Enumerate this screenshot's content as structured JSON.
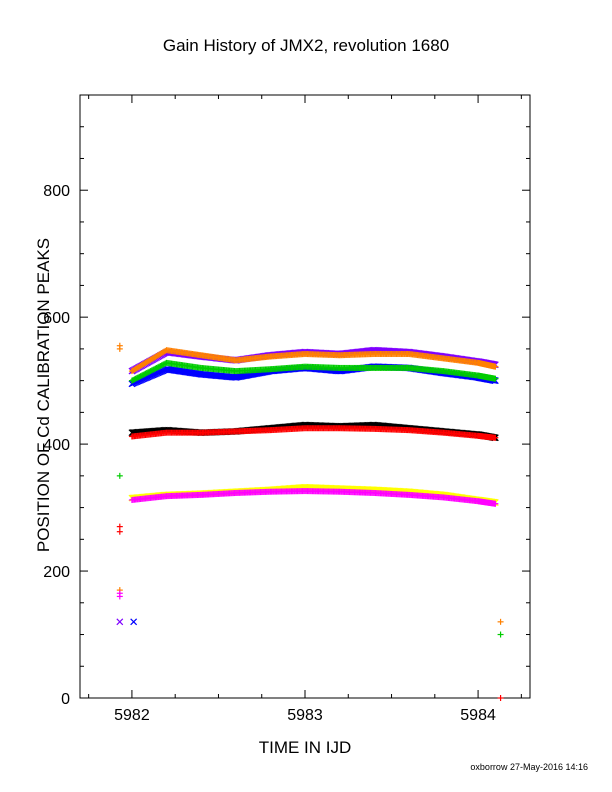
{
  "chart_data": {
    "type": "scatter",
    "title": "Gain History of JMX2, revolution 1680",
    "xlabel": "TIME IN IJD",
    "ylabel": "POSITION OF Cd CALIBRATION PEAKS",
    "xlim": [
      5981.7,
      5984.3
    ],
    "ylim": [
      0,
      950
    ],
    "xticks": [
      5982,
      5983,
      5984
    ],
    "yticks": [
      0,
      200,
      400,
      600,
      800
    ],
    "grid": false,
    "series": [
      {
        "color": "#7f00ff",
        "marker": "x",
        "x": [
          5982.0,
          5982.2,
          5982.4,
          5982.6,
          5982.8,
          5983.0,
          5983.2,
          5983.4,
          5983.6,
          5983.8,
          5984.0,
          5984.1
        ],
        "y": [
          515,
          545,
          538,
          532,
          540,
          545,
          542,
          548,
          545,
          538,
          530,
          525
        ]
      },
      {
        "color": "#0000ff",
        "marker": "x",
        "x": [
          5982.0,
          5982.2,
          5982.4,
          5982.6,
          5982.8,
          5983.0,
          5983.2,
          5983.4,
          5983.6,
          5983.8,
          5984.0,
          5984.1
        ],
        "y": [
          495,
          518,
          510,
          505,
          515,
          520,
          515,
          522,
          520,
          512,
          505,
          500
        ]
      },
      {
        "color": "#ff8000",
        "marker": "+",
        "x": [
          5982.0,
          5982.2,
          5982.4,
          5982.6,
          5982.8,
          5983.0,
          5983.2,
          5983.4,
          5983.6,
          5983.8,
          5984.0,
          5984.1
        ],
        "y": [
          515,
          548,
          540,
          532,
          538,
          542,
          540,
          542,
          542,
          535,
          528,
          522
        ]
      },
      {
        "color": "#00cc00",
        "marker": "+",
        "x": [
          5982.0,
          5982.2,
          5982.4,
          5982.6,
          5982.8,
          5983.0,
          5983.2,
          5983.4,
          5983.6,
          5983.8,
          5984.0,
          5984.1
        ],
        "y": [
          500,
          528,
          520,
          515,
          518,
          522,
          520,
          520,
          520,
          515,
          508,
          503
        ]
      },
      {
        "color": "#000000",
        "marker": "x",
        "x": [
          5982.0,
          5982.2,
          5982.4,
          5982.6,
          5982.8,
          5983.0,
          5983.2,
          5983.4,
          5983.6,
          5983.8,
          5984.0,
          5984.1
        ],
        "y": [
          418,
          422,
          418,
          420,
          425,
          430,
          428,
          430,
          425,
          420,
          415,
          410
        ]
      },
      {
        "color": "#ff0000",
        "marker": "+",
        "x": [
          5982.0,
          5982.2,
          5982.4,
          5982.6,
          5982.8,
          5983.0,
          5983.2,
          5983.4,
          5983.6,
          5983.8,
          5984.0,
          5984.1
        ],
        "y": [
          412,
          418,
          418,
          420,
          422,
          425,
          425,
          424,
          422,
          418,
          413,
          410
        ]
      },
      {
        "color": "#ffff00",
        "marker": "x",
        "x": [
          5982.0,
          5982.2,
          5982.4,
          5982.6,
          5982.8,
          5983.0,
          5983.2,
          5983.4,
          5983.6,
          5983.8,
          5984.0,
          5984.1
        ],
        "y": [
          315,
          320,
          322,
          325,
          328,
          332,
          330,
          328,
          325,
          320,
          312,
          308
        ]
      },
      {
        "color": "#ff00ff",
        "marker": "+",
        "x": [
          5982.0,
          5982.2,
          5982.4,
          5982.6,
          5982.8,
          5983.0,
          5983.2,
          5983.4,
          5983.6,
          5983.8,
          5984.0,
          5984.1
        ],
        "y": [
          312,
          318,
          320,
          323,
          325,
          326,
          325,
          323,
          320,
          316,
          310,
          306
        ]
      }
    ],
    "outliers": [
      {
        "color": "#ff8000",
        "marker": "+",
        "x": 5981.93,
        "y": 555
      },
      {
        "color": "#ff8000",
        "marker": "+",
        "x": 5981.93,
        "y": 550
      },
      {
        "color": "#ff8000",
        "marker": "+",
        "x": 5981.93,
        "y": 170
      },
      {
        "color": "#ff00ff",
        "marker": "+",
        "x": 5981.93,
        "y": 165
      },
      {
        "color": "#ff00ff",
        "marker": "+",
        "x": 5981.93,
        "y": 160
      },
      {
        "color": "#00cc00",
        "marker": "+",
        "x": 5981.93,
        "y": 350
      },
      {
        "color": "#ff0000",
        "marker": "+",
        "x": 5981.93,
        "y": 270
      },
      {
        "color": "#ff0000",
        "marker": "+",
        "x": 5981.93,
        "y": 262
      },
      {
        "color": "#7f00ff",
        "marker": "x",
        "x": 5981.93,
        "y": 120
      },
      {
        "color": "#0000ff",
        "marker": "x",
        "x": 5982.01,
        "y": 120
      },
      {
        "color": "#ff8000",
        "marker": "+",
        "x": 5984.13,
        "y": 120
      },
      {
        "color": "#00cc00",
        "marker": "+",
        "x": 5984.13,
        "y": 100
      },
      {
        "color": "#ff0000",
        "marker": "+",
        "x": 5984.13,
        "y": 0
      }
    ]
  },
  "footer": {
    "credit": "oxborrow 27-May-2016 14:16"
  }
}
